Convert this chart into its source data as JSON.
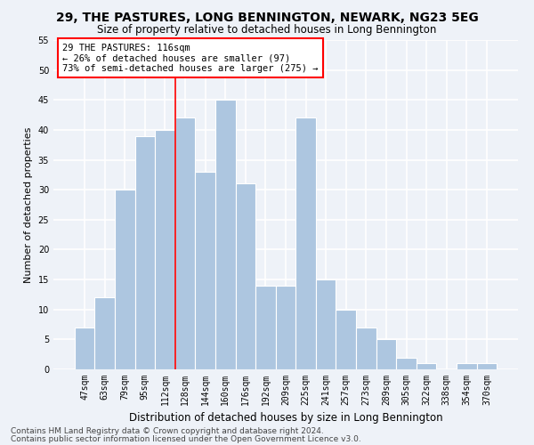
{
  "title": "29, THE PASTURES, LONG BENNINGTON, NEWARK, NG23 5EG",
  "subtitle": "Size of property relative to detached houses in Long Bennington",
  "xlabel": "Distribution of detached houses by size in Long Bennington",
  "ylabel": "Number of detached properties",
  "categories": [
    "47sqm",
    "63sqm",
    "79sqm",
    "95sqm",
    "112sqm",
    "128sqm",
    "144sqm",
    "160sqm",
    "176sqm",
    "192sqm",
    "209sqm",
    "225sqm",
    "241sqm",
    "257sqm",
    "273sqm",
    "289sqm",
    "305sqm",
    "322sqm",
    "338sqm",
    "354sqm",
    "370sqm"
  ],
  "values": [
    7,
    12,
    30,
    39,
    40,
    42,
    33,
    45,
    31,
    14,
    14,
    42,
    15,
    10,
    7,
    5,
    2,
    1,
    0,
    1,
    1
  ],
  "bar_color": "#adc6e0",
  "ylim": [
    0,
    55
  ],
  "yticks": [
    0,
    5,
    10,
    15,
    20,
    25,
    30,
    35,
    40,
    45,
    50,
    55
  ],
  "vline_index": 4.52,
  "vline_color": "red",
  "annotation_text": "29 THE PASTURES: 116sqm\n← 26% of detached houses are smaller (97)\n73% of semi-detached houses are larger (275) →",
  "annotation_box_color": "white",
  "annotation_box_edge_color": "red",
  "footer_line1": "Contains HM Land Registry data © Crown copyright and database right 2024.",
  "footer_line2": "Contains public sector information licensed under the Open Government Licence v3.0.",
  "background_color": "#eef2f8",
  "grid_color": "white",
  "title_fontsize": 10,
  "subtitle_fontsize": 8.5,
  "xlabel_fontsize": 8.5,
  "ylabel_fontsize": 8,
  "tick_fontsize": 7,
  "footer_fontsize": 6.5,
  "annotation_fontsize": 7.5
}
